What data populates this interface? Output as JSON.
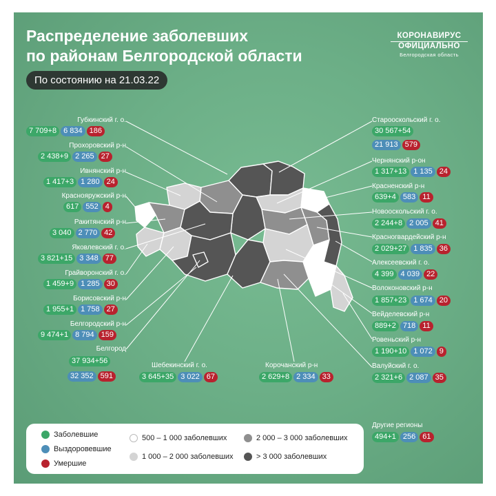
{
  "header": {
    "title_line1": "Распределение заболевших",
    "title_line2": "по районам Белгородской области",
    "date": "По состоянию на 21.03.22"
  },
  "logo": {
    "line1": "КОРОНАВИРУС",
    "line2": "ОФИЦИАЛЬНО",
    "line3": "Белгородская область"
  },
  "districts": [
    {
      "name": "Губкинский г. о.",
      "cases": "7 709+8",
      "recovered": "6 834",
      "deaths": "186"
    },
    {
      "name": "Прохоровский р-н",
      "cases": "2 438+9",
      "recovered": "2 265",
      "deaths": "27"
    },
    {
      "name": "Ивнянский р-н",
      "cases": "1 417+3",
      "recovered": "1 280",
      "deaths": "24"
    },
    {
      "name": "Краснояружский р-н",
      "cases": "617",
      "recovered": "552",
      "deaths": "4"
    },
    {
      "name": "Ракитянский р-н",
      "cases": "3 040",
      "recovered": "2 770",
      "deaths": "42"
    },
    {
      "name": "Яковлевский г. о.",
      "cases": "3 821+15",
      "recovered": "3 348",
      "deaths": "77"
    },
    {
      "name": "Грайворонский г. о.",
      "cases": "1 459+9",
      "recovered": "1 285",
      "deaths": "30"
    },
    {
      "name": "Борисовский р-н",
      "cases": "1 955+1",
      "recovered": "1 758",
      "deaths": "27"
    },
    {
      "name": "Белгородский р-н",
      "cases": "9 474+1",
      "recovered": "8 794",
      "deaths": "159"
    },
    {
      "name": "Белгород",
      "cases": "37 934+56",
      "recovered": "32 352",
      "deaths": "591"
    },
    {
      "name": "Шебекинский г. о.",
      "cases": "3 645+35",
      "recovered": "3 022",
      "deaths": "67"
    },
    {
      "name": "Корочанский р-н",
      "cases": "2 629+8",
      "recovered": "2 334",
      "deaths": "33"
    },
    {
      "name": "Старооскольский г. о.",
      "cases": "30 567+54",
      "recovered": "21 913",
      "deaths": "579"
    },
    {
      "name": "Чернянский р-он",
      "cases": "1 317+13",
      "recovered": "1 135",
      "deaths": "24"
    },
    {
      "name": "Красненский р-н",
      "cases": "639+4",
      "recovered": "583",
      "deaths": "11"
    },
    {
      "name": "Новооскольский г. о.",
      "cases": "2 244+8",
      "recovered": "2 005",
      "deaths": "41"
    },
    {
      "name": "Красногвардейский р-н",
      "cases": "2 029+27",
      "recovered": "1 835",
      "deaths": "36"
    },
    {
      "name": "Алексеевский г. о.",
      "cases": "4 399",
      "recovered": "4 039",
      "deaths": "22"
    },
    {
      "name": "Волоконовский р-н",
      "cases": "1 857+23",
      "recovered": "1 674",
      "deaths": "20"
    },
    {
      "name": "Вейделевский р-н",
      "cases": "889+2",
      "recovered": "718",
      "deaths": "11"
    },
    {
      "name": "Ровеньский р-н",
      "cases": "1 190+10",
      "recovered": "1 072",
      "deaths": "9"
    },
    {
      "name": "Валуйский г. о.",
      "cases": "2 321+6",
      "recovered": "2 087",
      "deaths": "35"
    }
  ],
  "other_regions": {
    "name": "Другие регионы",
    "cases": "494+1",
    "recovered": "256",
    "deaths": "61"
  },
  "legend": {
    "cases": "Заболевшие",
    "recovered": "Выздоровевшие",
    "deaths": "Умершие",
    "range1": "500 – 1 000 заболевших",
    "range2": "1 000 – 2 000 заболевших",
    "range3": "2 000 – 3 000 заболевших",
    "range4": "> 3 000 заболевших"
  },
  "colors": {
    "background": "#66ab84",
    "cases": "#3ca768",
    "recovered": "#4d8eb8",
    "deaths": "#b8222e",
    "range1": "#ffffff",
    "range2": "#d4d4d4",
    "range3": "#8f8f8f",
    "range4": "#555555"
  }
}
